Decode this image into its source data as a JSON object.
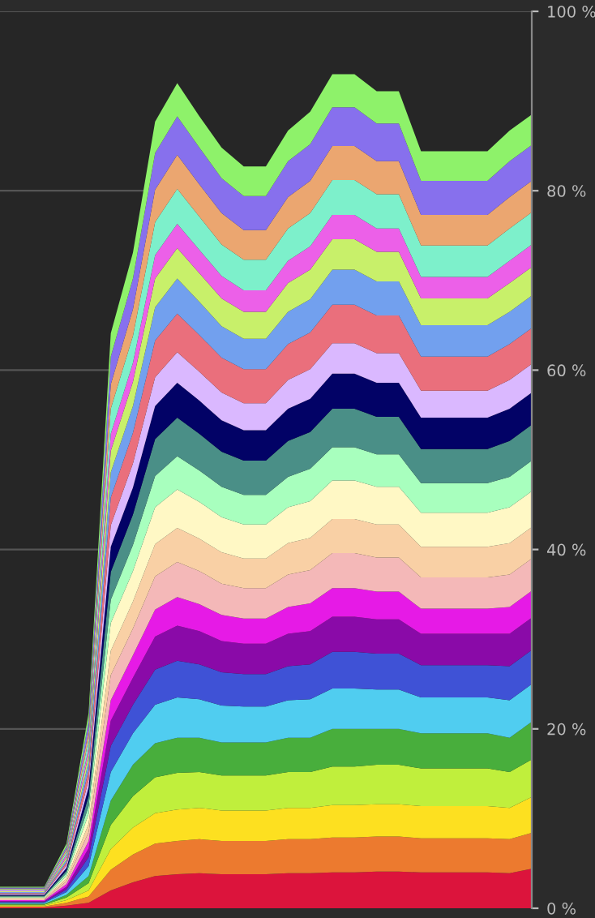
{
  "chart_data": {
    "type": "area",
    "stacked": true,
    "categories": [
      null,
      null,
      null,
      null,
      null,
      null,
      null,
      null,
      null,
      null,
      null,
      null,
      null,
      null,
      null,
      null,
      null,
      null,
      null,
      null,
      null,
      null,
      null,
      null,
      null
    ],
    "ylim": [
      0,
      100
    ],
    "yticks": [
      {
        "value": 0,
        "label": "0 %"
      },
      {
        "value": 20,
        "label": "20 %"
      },
      {
        "value": 40,
        "label": "40 %"
      },
      {
        "value": 60,
        "label": "60 %"
      },
      {
        "value": 80,
        "label": "80 %"
      },
      {
        "value": 100,
        "label": "100 %"
      }
    ],
    "tick_labels": "y",
    "grid": "y",
    "legend": false,
    "series": [
      {
        "color": "#dc143c",
        "values": [
          0.1,
          0.1,
          0.1,
          0.3,
          0.6,
          2.0,
          2.9,
          3.6,
          3.8,
          3.9,
          3.8,
          3.8,
          3.8,
          3.9,
          3.9,
          4.0,
          4.0,
          4.1,
          4.1,
          4.0,
          4.0,
          4.0,
          4.0,
          3.9,
          4.4
        ]
      },
      {
        "color": "#ec7a2f",
        "values": [
          0.1,
          0.1,
          0.1,
          0.3,
          0.7,
          2.3,
          3.1,
          3.6,
          3.7,
          3.8,
          3.7,
          3.7,
          3.7,
          3.8,
          3.8,
          3.9,
          3.9,
          3.9,
          3.9,
          3.8,
          3.8,
          3.8,
          3.8,
          3.8,
          4.0
        ]
      },
      {
        "color": "#fde020",
        "values": [
          0.1,
          0.1,
          0.1,
          0.3,
          0.7,
          2.3,
          3.0,
          3.4,
          3.5,
          3.5,
          3.4,
          3.4,
          3.4,
          3.5,
          3.5,
          3.6,
          3.6,
          3.6,
          3.6,
          3.6,
          3.6,
          3.6,
          3.6,
          3.5,
          4.0
        ]
      },
      {
        "color": "#c0ef3c",
        "values": [
          0.1,
          0.1,
          0.1,
          0.3,
          0.8,
          2.7,
          3.5,
          4.0,
          4.1,
          4.0,
          3.9,
          3.9,
          3.9,
          4.0,
          4.0,
          4.3,
          4.3,
          4.4,
          4.4,
          4.2,
          4.2,
          4.2,
          4.2,
          4.0,
          4.2
        ]
      },
      {
        "color": "#48ae3c",
        "values": [
          0.1,
          0.1,
          0.1,
          0.3,
          0.8,
          2.7,
          3.5,
          3.8,
          3.9,
          3.8,
          3.7,
          3.7,
          3.7,
          3.8,
          3.8,
          4.2,
          4.2,
          4.0,
          4.0,
          3.9,
          3.9,
          3.9,
          3.9,
          3.8,
          4.2
        ]
      },
      {
        "color": "#50cdf0",
        "values": [
          0.1,
          0.1,
          0.1,
          0.3,
          1.1,
          3.2,
          3.5,
          4.3,
          4.5,
          4.3,
          4.1,
          4.0,
          4.0,
          4.2,
          4.3,
          4.5,
          4.5,
          4.4,
          4.4,
          4.0,
          4.0,
          4.0,
          4.0,
          4.2,
          4.2
        ]
      },
      {
        "color": "#3f52d6",
        "values": [
          0.1,
          0.1,
          0.1,
          0.3,
          1.0,
          2.9,
          3.2,
          3.9,
          4.1,
          3.9,
          3.7,
          3.6,
          3.6,
          3.8,
          3.9,
          4.1,
          4.1,
          4.0,
          4.0,
          3.6,
          3.6,
          3.6,
          3.6,
          3.8,
          3.8
        ]
      },
      {
        "color": "#8a0aa8",
        "values": [
          0.1,
          0.1,
          0.1,
          0.3,
          1.0,
          2.8,
          3.0,
          3.7,
          3.9,
          3.7,
          3.5,
          3.4,
          3.4,
          3.6,
          3.7,
          3.9,
          3.9,
          3.8,
          3.8,
          3.5,
          3.5,
          3.5,
          3.5,
          3.6,
          3.6
        ]
      },
      {
        "color": "#e61ae6",
        "values": [
          0.1,
          0.1,
          0.1,
          0.3,
          0.8,
          2.3,
          2.5,
          3.0,
          3.2,
          3.0,
          2.9,
          2.8,
          2.8,
          3.0,
          3.1,
          3.2,
          3.2,
          3.1,
          3.1,
          2.8,
          2.8,
          2.8,
          2.8,
          3.0,
          3.0
        ]
      },
      {
        "color": "#f4b8b8",
        "values": [
          0.1,
          0.1,
          0.1,
          0.3,
          1.0,
          2.8,
          3.0,
          3.7,
          3.9,
          3.7,
          3.5,
          3.4,
          3.4,
          3.6,
          3.7,
          3.9,
          3.9,
          3.8,
          3.8,
          3.5,
          3.5,
          3.5,
          3.5,
          3.6,
          3.6
        ]
      },
      {
        "color": "#f9d0a5",
        "values": [
          0.1,
          0.1,
          0.1,
          0.3,
          0.9,
          2.7,
          3.0,
          3.6,
          3.8,
          3.6,
          3.5,
          3.3,
          3.3,
          3.5,
          3.6,
          3.8,
          3.8,
          3.7,
          3.7,
          3.4,
          3.4,
          3.4,
          3.4,
          3.5,
          3.5
        ]
      },
      {
        "color": "#fff8c5",
        "values": [
          0.1,
          0.1,
          0.1,
          0.3,
          1.1,
          3.1,
          3.4,
          4.1,
          4.3,
          4.1,
          3.9,
          3.8,
          3.8,
          4.0,
          4.1,
          4.3,
          4.3,
          4.2,
          4.2,
          3.8,
          3.8,
          3.8,
          3.8,
          4.0,
          4.0
        ]
      },
      {
        "color": "#a8ffbe",
        "values": [
          0.1,
          0.1,
          0.1,
          0.3,
          0.9,
          2.6,
          2.9,
          3.5,
          3.7,
          3.5,
          3.4,
          3.3,
          3.3,
          3.4,
          3.6,
          3.7,
          3.7,
          3.6,
          3.6,
          3.3,
          3.3,
          3.3,
          3.3,
          3.4,
          3.4
        ]
      },
      {
        "color": "#4a8f87",
        "values": [
          0.1,
          0.1,
          0.1,
          0.3,
          1.1,
          3.1,
          3.4,
          4.1,
          4.3,
          4.1,
          3.9,
          3.8,
          3.8,
          4.0,
          4.1,
          4.3,
          4.3,
          4.2,
          4.2,
          3.8,
          3.8,
          3.8,
          3.8,
          4.0,
          4.0
        ]
      },
      {
        "color": "#020266",
        "values": [
          0.1,
          0.1,
          0.1,
          0.3,
          1.0,
          2.8,
          3.0,
          3.7,
          3.9,
          3.7,
          3.5,
          3.4,
          3.4,
          3.6,
          3.7,
          3.9,
          3.9,
          3.8,
          3.8,
          3.5,
          3.5,
          3.5,
          3.5,
          3.6,
          3.6
        ]
      },
      {
        "color": "#dab8ff",
        "values": [
          0.1,
          0.1,
          0.1,
          0.3,
          0.8,
          2.4,
          2.7,
          3.2,
          3.4,
          3.2,
          3.1,
          3.0,
          3.0,
          3.2,
          3.3,
          3.4,
          3.4,
          3.3,
          3.3,
          3.0,
          3.0,
          3.0,
          3.0,
          3.2,
          3.2
        ]
      },
      {
        "color": "#ea6f7c",
        "values": [
          0.1,
          0.1,
          0.1,
          0.3,
          1.1,
          3.1,
          3.4,
          4.1,
          4.3,
          4.1,
          3.9,
          3.8,
          3.8,
          4.0,
          4.1,
          4.3,
          4.3,
          4.2,
          4.2,
          3.8,
          3.8,
          3.8,
          3.8,
          4.0,
          4.0
        ]
      },
      {
        "color": "#72a0ee",
        "values": [
          0.1,
          0.1,
          0.1,
          0.3,
          1.0,
          2.8,
          3.0,
          3.7,
          3.9,
          3.7,
          3.5,
          3.4,
          3.4,
          3.6,
          3.7,
          3.9,
          3.9,
          3.8,
          3.8,
          3.5,
          3.5,
          3.5,
          3.5,
          3.6,
          3.6
        ]
      },
      {
        "color": "#c8f06a",
        "values": [
          0.1,
          0.1,
          0.1,
          0.3,
          0.8,
          2.4,
          2.7,
          3.2,
          3.4,
          3.2,
          3.1,
          3.0,
          3.0,
          3.2,
          3.3,
          3.4,
          3.4,
          3.3,
          3.3,
          3.0,
          3.0,
          3.0,
          3.0,
          3.2,
          3.2
        ]
      },
      {
        "color": "#ec60e8",
        "values": [
          0.1,
          0.1,
          0.1,
          0.3,
          0.7,
          1.9,
          2.1,
          2.6,
          2.7,
          2.6,
          2.5,
          2.4,
          2.4,
          2.5,
          2.6,
          2.7,
          2.7,
          2.6,
          2.6,
          2.4,
          2.4,
          2.4,
          2.4,
          2.5,
          2.5
        ]
      },
      {
        "color": "#7df0cb",
        "values": [
          0.1,
          0.1,
          0.1,
          0.3,
          1.0,
          2.8,
          3.0,
          3.7,
          3.9,
          3.7,
          3.5,
          3.4,
          3.4,
          3.6,
          3.7,
          3.9,
          3.9,
          3.8,
          3.8,
          3.5,
          3.5,
          3.5,
          3.5,
          3.6,
          3.6
        ]
      },
      {
        "color": "#eba670",
        "values": [
          0.1,
          0.1,
          0.1,
          0.3,
          0.9,
          2.7,
          3.0,
          3.6,
          3.8,
          3.6,
          3.5,
          3.3,
          3.3,
          3.5,
          3.6,
          3.8,
          3.8,
          3.7,
          3.7,
          3.4,
          3.4,
          3.4,
          3.4,
          3.5,
          3.5
        ]
      },
      {
        "color": "#8770ed",
        "values": [
          0.1,
          0.1,
          0.1,
          0.3,
          1.1,
          3.1,
          3.4,
          4.1,
          4.3,
          4.1,
          3.9,
          3.8,
          3.8,
          4.0,
          4.1,
          4.3,
          4.3,
          4.2,
          4.2,
          3.8,
          3.8,
          3.8,
          3.8,
          4.0,
          4.0
        ]
      },
      {
        "color": "#8ef26a",
        "values": [
          0.1,
          0.1,
          0.1,
          0.3,
          0.9,
          2.6,
          2.9,
          3.5,
          3.7,
          3.5,
          3.4,
          3.3,
          3.3,
          3.4,
          3.6,
          3.7,
          3.7,
          3.6,
          3.6,
          3.3,
          3.3,
          3.3,
          3.3,
          3.4,
          3.4
        ]
      }
    ]
  }
}
